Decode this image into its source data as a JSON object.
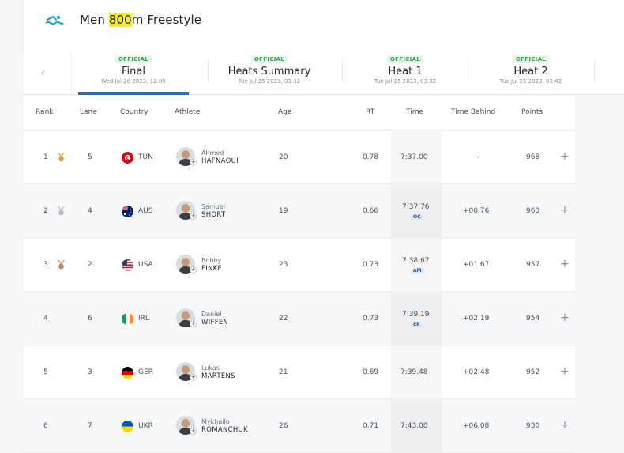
{
  "event": {
    "title_pre": "Men ",
    "title_hl": "800",
    "title_post": "m Freestyle",
    "icon": "swimmer-icon"
  },
  "tabs": [
    {
      "badge": "OFFICIAL",
      "name": "Final",
      "date": "Wed Jul 26 2023, 12:05",
      "active": true
    },
    {
      "badge": "OFFICIAL",
      "name": "Heats Summary",
      "date": "Tue Jul 25 2023, 03:32",
      "active": false
    },
    {
      "badge": "OFFICIAL",
      "name": "Heat 1",
      "date": "Tue Jul 25 2023, 03:32",
      "active": false
    },
    {
      "badge": "OFFICIAL",
      "name": "Heat 2",
      "date": "Tue Jul 25 2023, 03:42",
      "active": false
    }
  ],
  "columns": {
    "rank": "Rank",
    "lane": "Lane",
    "country": "Country",
    "athlete": "Athlete",
    "age": "Age",
    "rt": "RT",
    "time": "Time",
    "behind": "Time Behind",
    "points": "Points"
  },
  "rows": [
    {
      "rank": "1",
      "medal": "gold",
      "lane": "5",
      "country": "TUN",
      "flag": "tun",
      "first": "Ahmed",
      "last": "HAFNAOUI",
      "age": "20",
      "rt": "0.78",
      "time": "7:37.00",
      "record": "",
      "behind": "-",
      "points": "968"
    },
    {
      "rank": "2",
      "medal": "silver",
      "lane": "4",
      "country": "AUS",
      "flag": "aus",
      "first": "Samuel",
      "last": "SHORT",
      "age": "19",
      "rt": "0.66",
      "time": "7:37.76",
      "record": "OC",
      "behind": "+00.76",
      "points": "963"
    },
    {
      "rank": "3",
      "medal": "bronze",
      "lane": "2",
      "country": "USA",
      "flag": "usa",
      "first": "Bobby",
      "last": "FINKE",
      "age": "23",
      "rt": "0.73",
      "time": "7:38.67",
      "record": "AM",
      "behind": "+01.67",
      "points": "957"
    },
    {
      "rank": "4",
      "medal": "",
      "lane": "6",
      "country": "IRL",
      "flag": "irl",
      "first": "Daniel",
      "last": "WIFFEN",
      "age": "22",
      "rt": "0.73",
      "time": "7:39.19",
      "record": "ER",
      "behind": "+02.19",
      "points": "954"
    },
    {
      "rank": "5",
      "medal": "",
      "lane": "3",
      "country": "GER",
      "flag": "ger",
      "first": "Lukas",
      "last": "MARTENS",
      "age": "21",
      "rt": "0.69",
      "time": "7:39.48",
      "record": "",
      "behind": "+02.48",
      "points": "952"
    },
    {
      "rank": "6",
      "medal": "",
      "lane": "7",
      "country": "UKR",
      "flag": "ukr",
      "first": "Mykhailo",
      "last": "ROMANCHUK",
      "age": "26",
      "rt": "0.71",
      "time": "7:43.08",
      "record": "",
      "behind": "+06.08",
      "points": "930"
    }
  ],
  "colors": {
    "gold": "#d7a546",
    "silver": "#b9bcc0",
    "bronze": "#b58a5a",
    "badge_green": "#3f9d57",
    "active_tab": "#1f6fb8",
    "record_bg": "#dce8f6"
  }
}
